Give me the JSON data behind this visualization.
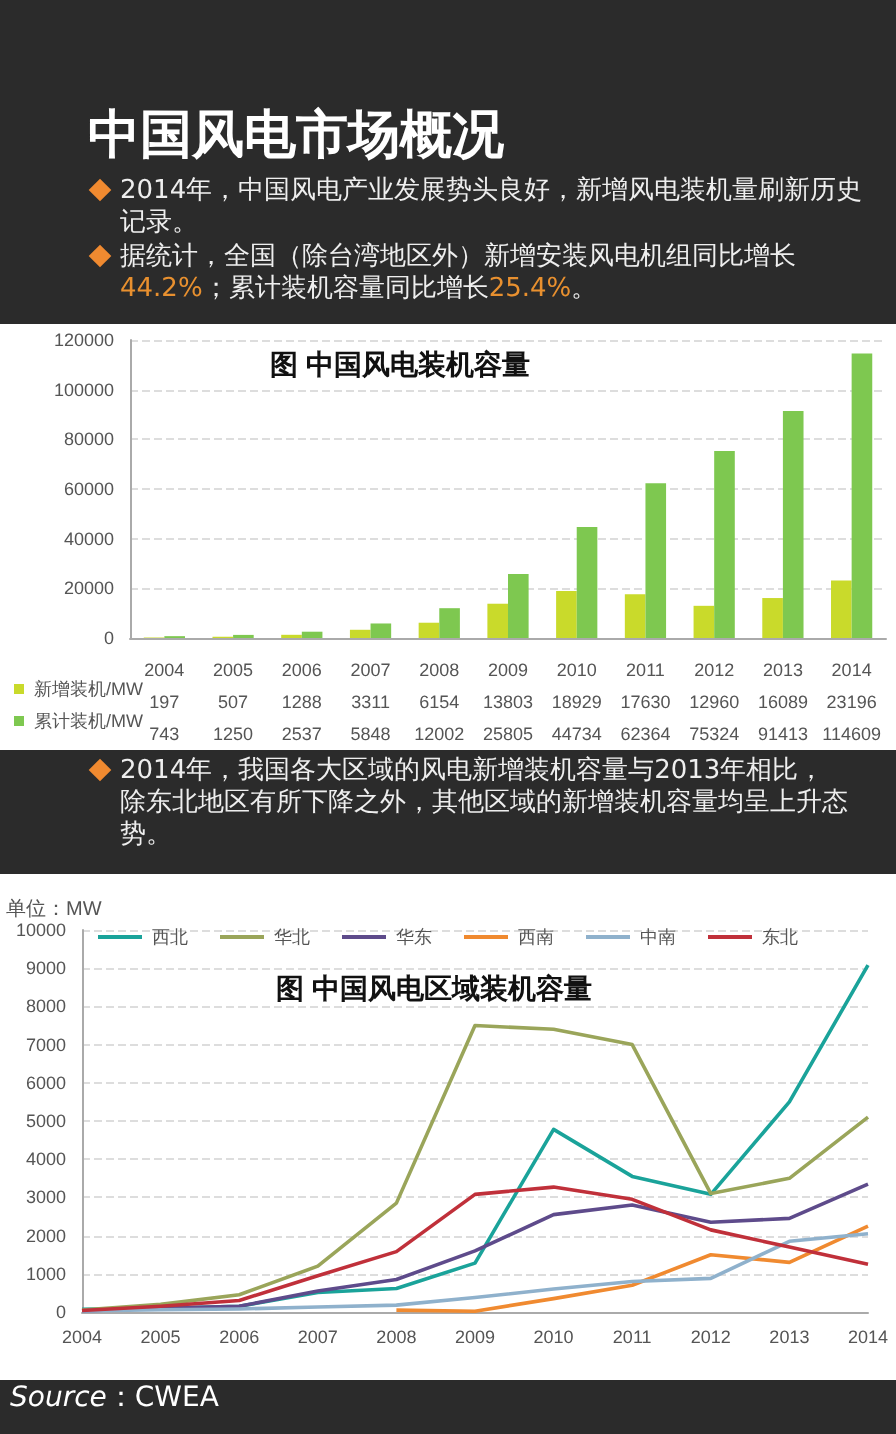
{
  "chart_data": [
    {
      "type": "bar",
      "title": "图 中国风电装机容量",
      "annotations": [
        "中国风电市场概况",
        "2014年，中国风电产业发展势头良好，新增风电装机量刷新历史记录。",
        "据统计，全国（除台湾地区外）新增安装风电机组同比增长44.2%；累计装机容量同比增长25.4%。"
      ],
      "categories": [
        "2004",
        "2005",
        "2006",
        "2007",
        "2008",
        "2009",
        "2010",
        "2011",
        "2012",
        "2013",
        "2014"
      ],
      "series": [
        {
          "name": "新增装机/MW",
          "color": "#c9da2b",
          "values": [
            197,
            507,
            1288,
            3311,
            6154,
            13803,
            18929,
            17630,
            12960,
            16089,
            23196
          ]
        },
        {
          "name": "累计装机/MW",
          "color": "#7ec850",
          "values": [
            743,
            1250,
            2537,
            5848,
            12002,
            25805,
            44734,
            62364,
            75324,
            91413,
            114609
          ]
        }
      ],
      "ylim": [
        0,
        120000
      ],
      "yticks": [
        0,
        20000,
        40000,
        60000,
        80000,
        100000,
        120000
      ],
      "grid": "y",
      "legend": "bottom left",
      "data_labels": true
    },
    {
      "type": "line",
      "title": "图 中国风电区域装机容量",
      "ylabel": "单位：MW",
      "annotations": [
        "2014年，我国各大区域的风电新增装机容量与2013年相比，除东北地区有所下降之外，其他区域的新增装机容量均呈上升态势。",
        "Source：CWEA"
      ],
      "categories": [
        "2004",
        "2005",
        "2006",
        "2007",
        "2008",
        "2009",
        "2010",
        "2011",
        "2012",
        "2013",
        "2014"
      ],
      "series": [
        {
          "name": "西北",
          "color": "#1aa39a",
          "values": [
            70,
            100,
            150,
            510,
            615,
            1280,
            4780,
            3550,
            3080,
            5500,
            9080
          ]
        },
        {
          "name": "华北",
          "color": "#9aa55a",
          "values": [
            50,
            200,
            450,
            1200,
            2850,
            7500,
            7400,
            7000,
            3100,
            3500,
            5100
          ]
        },
        {
          "name": "华东",
          "color": "#5e4b8b",
          "values": [
            30,
            100,
            150,
            550,
            850,
            1600,
            2550,
            2800,
            2350,
            2450,
            3350
          ]
        },
        {
          "name": "西南",
          "color": "#f08a30",
          "values": [
            null,
            null,
            null,
            null,
            50,
            20,
            350,
            700,
            1500,
            1300,
            2250
          ]
        },
        {
          "name": "中南",
          "color": "#8fb1cc",
          "values": [
            30,
            60,
            80,
            130,
            180,
            380,
            600,
            800,
            880,
            1850,
            2050
          ]
        },
        {
          "name": "东北",
          "color": "#c0303a",
          "values": [
            40,
            150,
            300,
            950,
            1580,
            3080,
            3270,
            2950,
            2150,
            1700,
            1250
          ]
        }
      ],
      "ylim": [
        0,
        10000
      ],
      "yticks": [
        0,
        1000,
        2000,
        3000,
        4000,
        5000,
        6000,
        7000,
        8000,
        9000,
        10000
      ],
      "grid": "y",
      "legend": "top",
      "marker": "none",
      "line_style": "solid"
    }
  ]
}
